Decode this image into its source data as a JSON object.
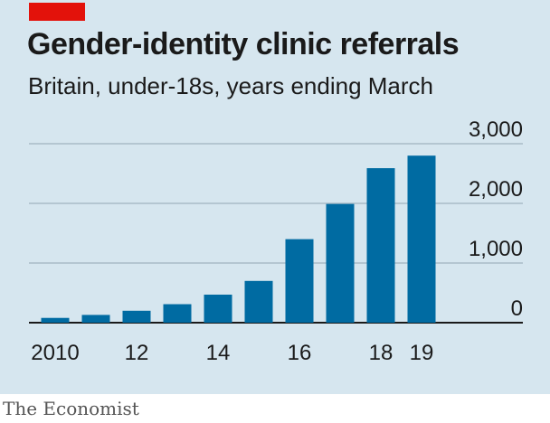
{
  "colors": {
    "background": "#d6e6ef",
    "bar": "#006ba2",
    "accent": "#e3120b",
    "grid": "#9fb3bf"
  },
  "footer": {
    "source": "The Economist"
  },
  "chart_data": {
    "type": "bar",
    "title": "Gender-identity clinic referrals",
    "subtitle": "Britain, under-18s, years ending March",
    "categories": [
      "2010",
      "2011",
      "2012",
      "2013",
      "2014",
      "2015",
      "2016",
      "2017",
      "2018",
      "2019"
    ],
    "x_tick_labels": [
      "2010",
      "",
      "12",
      "",
      "14",
      "",
      "16",
      "",
      "18",
      "19"
    ],
    "values": [
      80,
      130,
      200,
      310,
      470,
      700,
      1400,
      1990,
      2590,
      2800
    ],
    "ylim": [
      0,
      3000
    ],
    "y_ticks": [
      0,
      1000,
      2000,
      3000
    ],
    "y_tick_labels": [
      "0",
      "1,000",
      "2,000",
      "3,000"
    ],
    "grid": true,
    "xlabel": "",
    "ylabel": ""
  }
}
